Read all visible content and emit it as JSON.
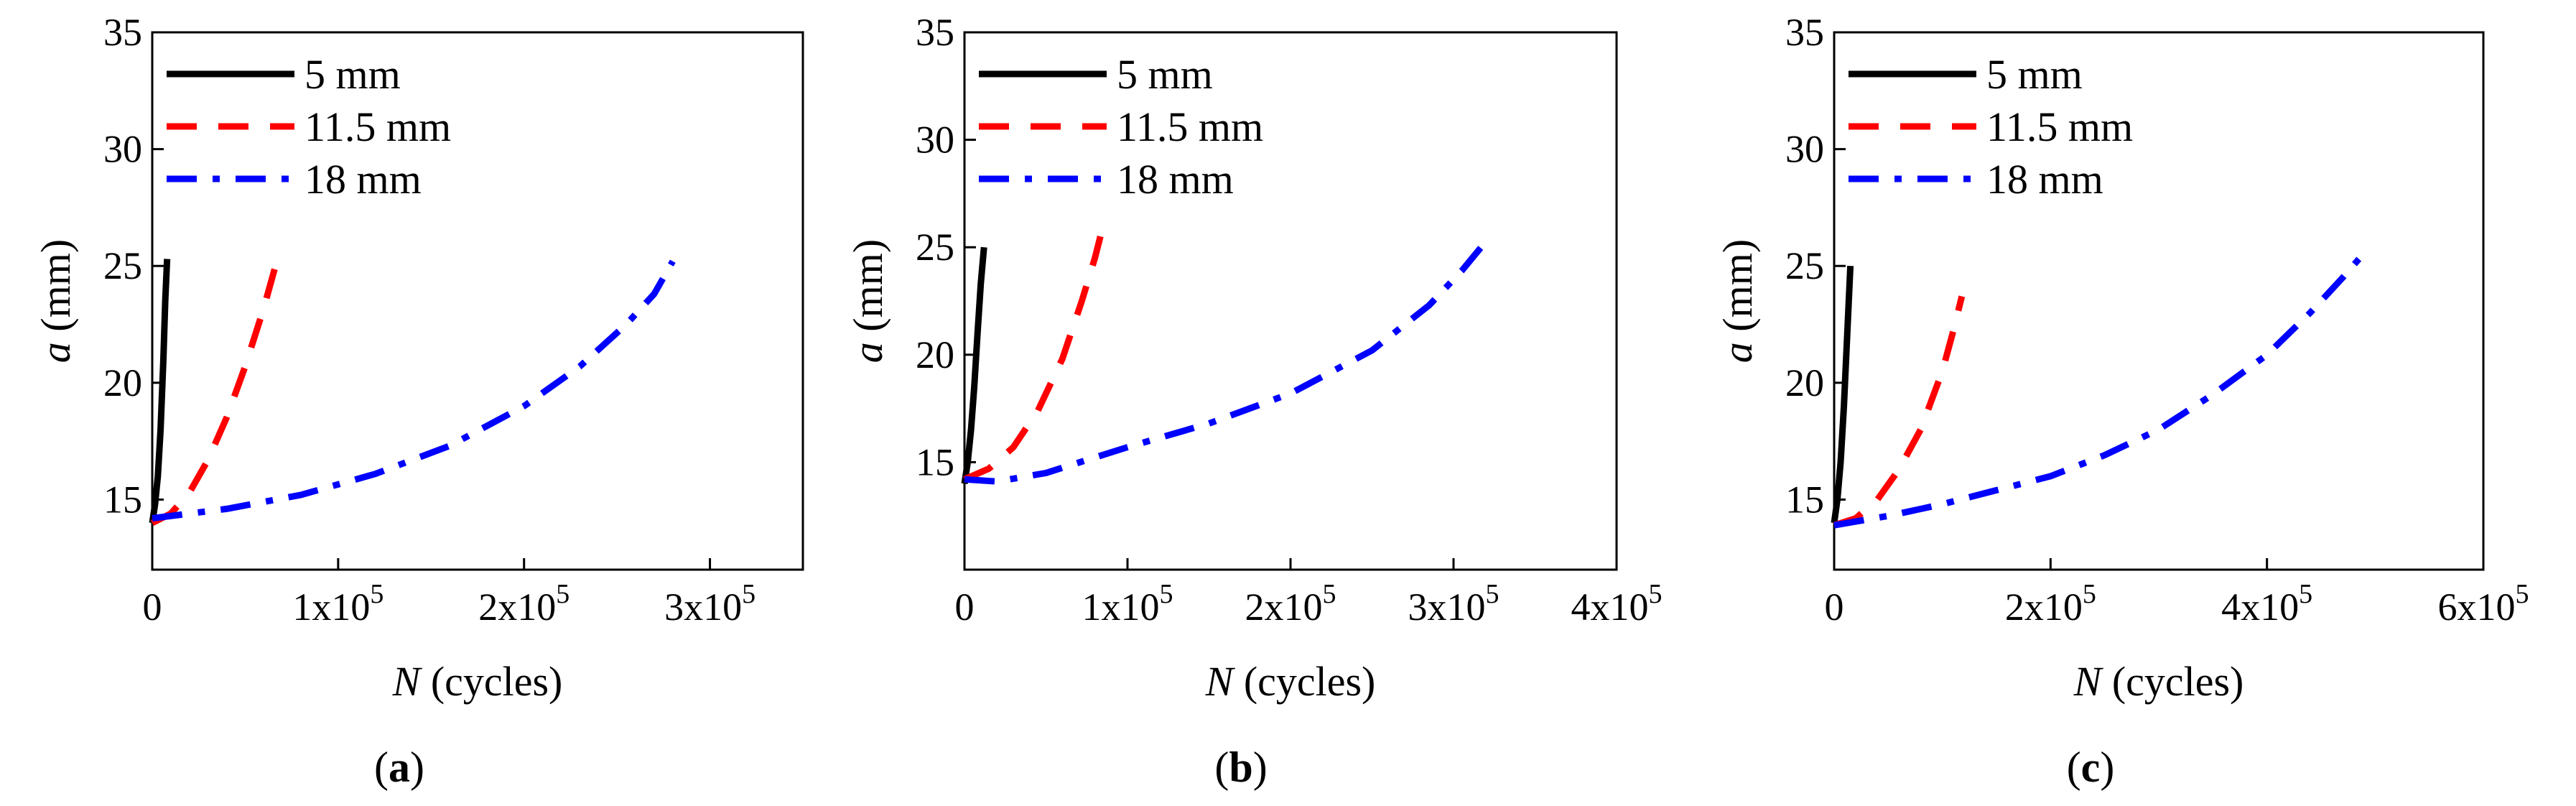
{
  "chart_data": [
    {
      "type": "line",
      "panel_label": "(a)",
      "xlabel": "N (cycles)",
      "ylabel": "a (mm)",
      "xlim": [
        0,
        350000
      ],
      "ylim": [
        12,
        35
      ],
      "x_ticks": [
        {
          "value": 0,
          "base": "0",
          "exp": ""
        },
        {
          "value": 100000,
          "base": "1x10",
          "exp": "5"
        },
        {
          "value": 200000,
          "base": "2x10",
          "exp": "5"
        },
        {
          "value": 300000,
          "base": "3x10",
          "exp": "5"
        }
      ],
      "y_ticks": [
        15,
        20,
        25,
        30,
        35
      ],
      "grid": false,
      "legend_position": "top-left",
      "series": [
        {
          "name": "5 mm",
          "color": "#000000",
          "style": "solid",
          "points": [
            [
              0,
              14.0
            ],
            [
              1500,
              14.8
            ],
            [
              3000,
              16.0
            ],
            [
              4500,
              18.0
            ],
            [
              6000,
              21.0
            ],
            [
              7000,
              23.5
            ],
            [
              8000,
              25.3
            ]
          ]
        },
        {
          "name": "11.5 mm",
          "color": "#ff0000",
          "style": "dashed",
          "points": [
            [
              0,
              14.0
            ],
            [
              10000,
              14.4
            ],
            [
              20000,
              15.3
            ],
            [
              30000,
              16.7
            ],
            [
              40000,
              18.5
            ],
            [
              50000,
              20.7
            ],
            [
              60000,
              23.2
            ],
            [
              67000,
              25.2
            ]
          ]
        },
        {
          "name": "18 mm",
          "color": "#0000ff",
          "style": "dashdot",
          "points": [
            [
              0,
              14.2
            ],
            [
              40000,
              14.6
            ],
            [
              80000,
              15.2
            ],
            [
              120000,
              16.1
            ],
            [
              160000,
              17.3
            ],
            [
              200000,
              19.0
            ],
            [
              230000,
              20.7
            ],
            [
              255000,
              22.5
            ],
            [
              270000,
              23.8
            ],
            [
              280000,
              25.2
            ]
          ]
        }
      ]
    },
    {
      "type": "line",
      "panel_label": "(b)",
      "xlabel": "N (cycles)",
      "ylabel": "a (mm)",
      "xlim": [
        0,
        400000
      ],
      "ylim": [
        10,
        35
      ],
      "x_ticks": [
        {
          "value": 0,
          "base": "0",
          "exp": ""
        },
        {
          "value": 100000,
          "base": "1x10",
          "exp": "5"
        },
        {
          "value": 200000,
          "base": "2x10",
          "exp": "5"
        },
        {
          "value": 300000,
          "base": "3x10",
          "exp": "5"
        },
        {
          "value": 400000,
          "base": "4x10",
          "exp": "5"
        }
      ],
      "y_ticks": [
        15,
        20,
        25,
        30,
        35
      ],
      "grid": false,
      "legend_position": "top-left",
      "series": [
        {
          "name": "5 mm",
          "color": "#000000",
          "style": "solid",
          "points": [
            [
              0,
              14.0
            ],
            [
              2000,
              15.0
            ],
            [
              4000,
              16.5
            ],
            [
              6000,
              18.5
            ],
            [
              8000,
              21.0
            ],
            [
              10000,
              23.3
            ],
            [
              12000,
              25.0
            ]
          ]
        },
        {
          "name": "11.5 mm",
          "color": "#ff0000",
          "style": "dashed",
          "points": [
            [
              0,
              14.2
            ],
            [
              15000,
              14.7
            ],
            [
              30000,
              15.7
            ],
            [
              45000,
              17.4
            ],
            [
              60000,
              19.8
            ],
            [
              72000,
              22.5
            ],
            [
              80000,
              24.5
            ],
            [
              85000,
              26.0
            ]
          ]
        },
        {
          "name": "18 mm",
          "color": "#0000ff",
          "style": "dashdot",
          "points": [
            [
              0,
              14.2
            ],
            [
              20000,
              14.1
            ],
            [
              50000,
              14.5
            ],
            [
              100000,
              15.7
            ],
            [
              150000,
              16.8
            ],
            [
              200000,
              18.2
            ],
            [
              250000,
              20.2
            ],
            [
              285000,
              22.3
            ],
            [
              305000,
              23.9
            ],
            [
              318000,
              25.1
            ]
          ]
        }
      ]
    },
    {
      "type": "line",
      "panel_label": "(c)",
      "xlabel": "N (cycles)",
      "ylabel": "a (mm)",
      "xlim": [
        0,
        600000
      ],
      "ylim": [
        12,
        35
      ],
      "x_ticks": [
        {
          "value": 0,
          "base": "0",
          "exp": ""
        },
        {
          "value": 200000,
          "base": "2x10",
          "exp": "5"
        },
        {
          "value": 400000,
          "base": "4x10",
          "exp": "5"
        },
        {
          "value": 600000,
          "base": "6x10",
          "exp": "5"
        }
      ],
      "y_ticks": [
        15,
        20,
        25,
        30,
        35
      ],
      "grid": false,
      "legend_position": "top-left",
      "series": [
        {
          "name": "5 mm",
          "color": "#000000",
          "style": "solid",
          "points": [
            [
              0,
              14.0
            ],
            [
              3000,
              15.0
            ],
            [
              6000,
              16.6
            ],
            [
              9000,
              19.0
            ],
            [
              12000,
              22.0
            ],
            [
              15000,
              25.0
            ]
          ]
        },
        {
          "name": "11.5 mm",
          "color": "#ff0000",
          "style": "dashed",
          "points": [
            [
              0,
              13.9
            ],
            [
              20000,
              14.2
            ],
            [
              40000,
              15.0
            ],
            [
              60000,
              16.3
            ],
            [
              80000,
              18.0
            ],
            [
              100000,
              20.5
            ],
            [
              110000,
              22.2
            ],
            [
              118000,
              23.7
            ]
          ]
        },
        {
          "name": "18 mm",
          "color": "#0000ff",
          "style": "dashdot",
          "points": [
            [
              0,
              13.9
            ],
            [
              50000,
              14.3
            ],
            [
              100000,
              14.8
            ],
            [
              150000,
              15.4
            ],
            [
              200000,
              16.0
            ],
            [
              250000,
              16.9
            ],
            [
              300000,
              18.0
            ],
            [
              350000,
              19.5
            ],
            [
              400000,
              21.2
            ],
            [
              440000,
              23.0
            ],
            [
              470000,
              24.5
            ],
            [
              485000,
              25.3
            ]
          ]
        }
      ]
    }
  ]
}
